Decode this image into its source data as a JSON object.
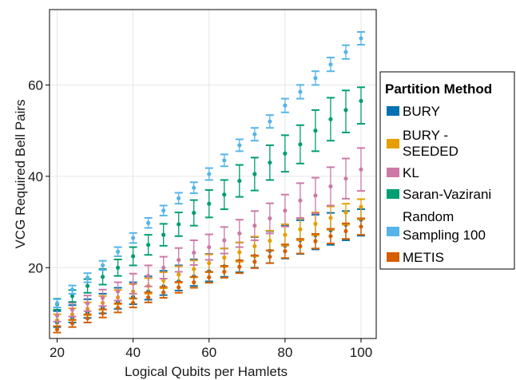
{
  "chart_data": {
    "type": "scatter",
    "xlabel": "Logical Qubits per Hamlets",
    "ylabel": "VCG Required Bell Pairs",
    "xlim": [
      18,
      104
    ],
    "ylim": [
      4.5,
      76.5
    ],
    "xticks": [
      20,
      40,
      60,
      80,
      100
    ],
    "yticks": [
      20,
      40,
      60
    ],
    "grid": true,
    "legend": {
      "title": "Partition Method",
      "placement": "right"
    },
    "x": [
      20,
      24,
      28,
      32,
      36,
      40,
      44,
      48,
      52,
      56,
      60,
      64,
      68,
      72,
      76,
      80,
      84,
      88,
      92,
      96,
      100
    ],
    "series": [
      {
        "name": "BURY",
        "color": "#0072b2",
        "values": [
          8,
          9.1,
          10.2,
          11.3,
          12.5,
          13.6,
          14.8,
          15.9,
          17.0,
          18.1,
          19.2,
          20.3,
          21.5,
          22.6,
          23.7,
          24.8,
          26.0,
          27.1,
          28.2,
          29.4,
          30.5
        ],
        "lower": [
          7,
          8.0,
          9.0,
          10.0,
          11.0,
          12.0,
          13.0,
          14.0,
          15.0,
          16.0,
          17.0,
          18.0,
          19.0,
          20.0,
          21.0,
          22.0,
          23.0,
          24.0,
          25.0,
          26.0,
          27.0
        ],
        "upper": [
          10.5,
          11.8,
          13.1,
          14.3,
          15.6,
          16.8,
          18.1,
          19.3,
          20.5,
          21.8,
          23.0,
          24.2,
          25.5,
          26.7,
          28.0,
          29.2,
          30.4,
          31.6,
          32.0,
          32.4,
          32.8
        ]
      },
      {
        "name": "BURY - SEEDED",
        "color": "#e69f00",
        "values": [
          8.5,
          9.8,
          11.0,
          12.3,
          13.5,
          14.8,
          16.0,
          17.2,
          18.5,
          19.7,
          21.0,
          22.2,
          23.4,
          24.7,
          25.9,
          27.2,
          28.4,
          29.6,
          30.9,
          32.1,
          33.3
        ],
        "lower": [
          7.2,
          8.5,
          9.6,
          10.8,
          12.0,
          13.2,
          14.3,
          15.5,
          16.7,
          17.9,
          19.0,
          20.2,
          21.3,
          22.5,
          23.7,
          24.8,
          26.0,
          27.1,
          28.3,
          29.4,
          30.6
        ],
        "upper": [
          9.8,
          11.1,
          12.4,
          13.8,
          15.1,
          16.4,
          17.7,
          19.0,
          20.3,
          21.6,
          22.9,
          24.2,
          25.5,
          26.8,
          28.1,
          29.5,
          30.8,
          32.1,
          33.4,
          34.0,
          35.0
        ]
      },
      {
        "name": "KL",
        "color": "#cc79a7",
        "values": [
          9.5,
          10.8,
          12.2,
          13.4,
          14.8,
          16.5,
          18.2,
          20.0,
          21.7,
          23.3,
          24.5,
          26.0,
          27.5,
          29.2,
          30.8,
          32.5,
          34.7,
          35.8,
          37.8,
          39.5,
          41.5
        ],
        "lower": [
          8.2,
          9.3,
          10.5,
          11.6,
          12.8,
          14.3,
          15.9,
          17.6,
          19.1,
          20.6,
          21.7,
          23.1,
          24.5,
          26.0,
          27.5,
          29.0,
          30.9,
          31.9,
          33.6,
          35.1,
          36.8
        ],
        "upper": [
          10.8,
          12.3,
          13.9,
          15.2,
          16.8,
          18.7,
          20.5,
          22.4,
          24.3,
          26.0,
          27.3,
          28.9,
          30.5,
          32.4,
          34.1,
          36.0,
          38.5,
          39.7,
          42.0,
          43.9,
          46.2
        ]
      },
      {
        "name": "Saran-Vazirani",
        "color": "#009e73",
        "values": [
          12.0,
          13.8,
          16.0,
          18.0,
          20.0,
          22.5,
          25.0,
          27.2,
          29.5,
          32.0,
          34.0,
          36.0,
          39.0,
          40.5,
          43.0,
          45.0,
          47.0,
          50.0,
          52.5,
          54.5,
          56.5
        ],
        "lower": [
          10.8,
          12.5,
          14.5,
          16.3,
          18.2,
          20.5,
          22.8,
          24.8,
          26.9,
          29.2,
          31.0,
          32.8,
          35.5,
          36.9,
          39.2,
          41.0,
          42.8,
          45.5,
          47.8,
          49.6,
          51.5
        ],
        "upper": [
          13.2,
          15.1,
          17.5,
          19.7,
          21.8,
          24.5,
          27.2,
          29.6,
          32.1,
          34.8,
          37.0,
          39.2,
          42.5,
          44.1,
          46.8,
          49.0,
          51.2,
          54.5,
          57.2,
          58.8,
          59.5
        ]
      },
      {
        "name": "Random Sampling 100",
        "color": "#56b4e9",
        "values": [
          12.2,
          15.2,
          17.8,
          20.5,
          23.5,
          26.5,
          29.8,
          32.5,
          35.2,
          37.5,
          40.5,
          43.5,
          46.8,
          49.2,
          52.0,
          55.5,
          58.5,
          61.5,
          64.5,
          67.2,
          70.2
        ],
        "lower": [
          11.3,
          14.3,
          16.8,
          19.5,
          22.5,
          25.4,
          28.7,
          31.4,
          34.0,
          36.3,
          39.2,
          42.2,
          45.5,
          47.8,
          50.6,
          54.0,
          57.0,
          60.0,
          63.0,
          65.7,
          68.8
        ],
        "upper": [
          13.1,
          16.1,
          18.8,
          21.5,
          24.5,
          27.6,
          30.9,
          33.6,
          36.4,
          38.7,
          41.8,
          44.8,
          48.1,
          50.6,
          53.4,
          57.0,
          60.0,
          63.0,
          66.0,
          68.7,
          71.6
        ]
      },
      {
        "name": "METIS",
        "color": "#d55e00",
        "values": [
          6.5,
          7.8,
          8.9,
          10.0,
          11.2,
          12.3,
          13.5,
          14.6,
          15.7,
          16.8,
          17.9,
          19.1,
          20.2,
          21.3,
          22.4,
          23.6,
          24.7,
          25.8,
          26.9,
          28.0,
          29.0
        ],
        "lower": [
          5.8,
          7.0,
          8.0,
          9.1,
          10.2,
          11.3,
          12.4,
          13.4,
          14.5,
          15.6,
          16.7,
          17.8,
          18.8,
          19.9,
          21.0,
          22.1,
          23.1,
          24.2,
          25.3,
          26.3,
          27.2
        ],
        "upper": [
          7.2,
          8.6,
          9.8,
          10.9,
          12.2,
          13.3,
          14.6,
          15.8,
          16.9,
          18.0,
          19.1,
          20.4,
          21.6,
          22.7,
          23.8,
          25.1,
          26.3,
          27.4,
          28.5,
          29.7,
          30.8
        ]
      }
    ]
  },
  "legend_labels": {
    "bury": "BURY",
    "bury_seeded_1": "BURY -",
    "bury_seeded_2": "SEEDED",
    "kl": "KL",
    "saran": "Saran-Vazirani",
    "random_1": "Random",
    "random_2": "Sampling 100",
    "metis": "METIS"
  }
}
